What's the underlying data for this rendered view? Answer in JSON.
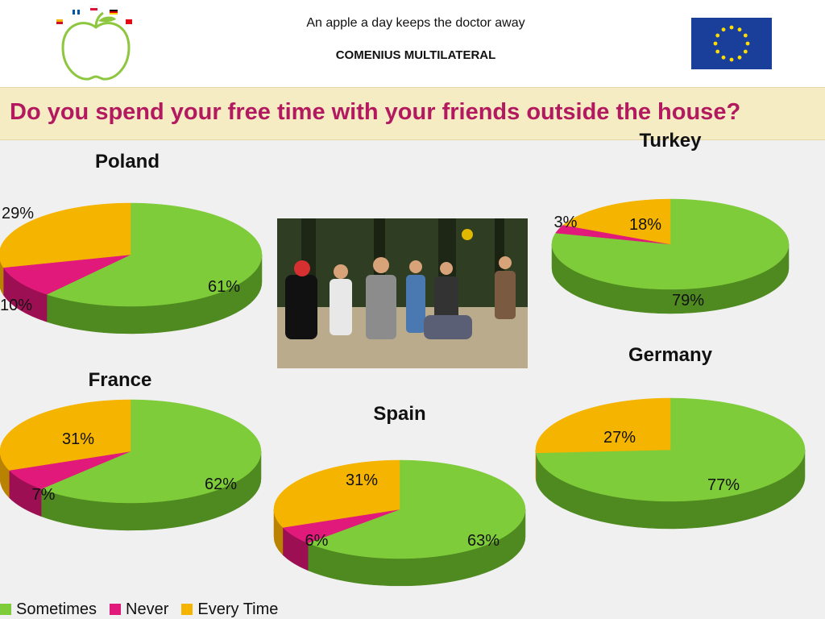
{
  "header": {
    "line1": "An apple a day keeps the doctor away",
    "line2": "COMENIUS MULTILATERAL",
    "logo_icon": "apple-logo-icon",
    "flag_icon": "eu-flag-icon"
  },
  "slide_title": "Do you spend your free time with your friends outside the house?",
  "photo": {
    "icon": "children-playing-photo-icon"
  },
  "colors": {
    "sometimes": "#7fcc3a",
    "never": "#e0197a",
    "every_time": "#f5b400"
  },
  "legend": [
    {
      "label": "Sometimes",
      "color": "#7fcc3a"
    },
    {
      "label": "Never",
      "color": "#e0197a"
    },
    {
      "label": "Every Time",
      "color": "#f5b400"
    }
  ],
  "chart_data": [
    {
      "type": "pie",
      "title": "Poland",
      "categories": [
        "Sometimes",
        "Never",
        "Every Time"
      ],
      "values": [
        61,
        10,
        29
      ],
      "labels": [
        "61%",
        "10%",
        "29%"
      ]
    },
    {
      "type": "pie",
      "title": "Turkey",
      "categories": [
        "Sometimes",
        "Never",
        "Every Time"
      ],
      "values": [
        79,
        3,
        18
      ],
      "labels": [
        "79%",
        "3%",
        "18%"
      ]
    },
    {
      "type": "pie",
      "title": "France",
      "categories": [
        "Sometimes",
        "Never",
        "Every Time"
      ],
      "values": [
        62,
        7,
        31
      ],
      "labels": [
        "62%",
        "7%",
        "31%"
      ]
    },
    {
      "type": "pie",
      "title": "Spain",
      "categories": [
        "Sometimes",
        "Never",
        "Every Time"
      ],
      "values": [
        63,
        6,
        31
      ],
      "labels": [
        "63%",
        "6%",
        "31%"
      ]
    },
    {
      "type": "pie",
      "title": "Germany",
      "categories": [
        "Sometimes",
        "Never",
        "Every Time"
      ],
      "values": [
        77,
        0,
        27
      ],
      "labels": [
        "77%",
        "",
        "27%"
      ]
    }
  ]
}
